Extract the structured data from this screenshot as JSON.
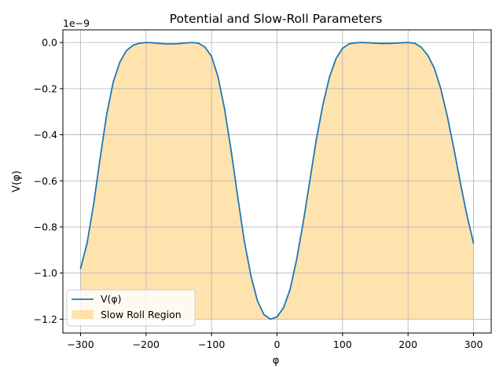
{
  "chart_data": {
    "type": "line",
    "title": "Potential and Slow-Roll Parameters",
    "xlabel": "φ",
    "ylabel": "V(φ)",
    "offset_text": "1e−9",
    "y_scale_factor": 1e-09,
    "xlim": [
      -327,
      327
    ],
    "ylim": [
      -1.26,
      0.055
    ],
    "x_ticks": [
      -300,
      -200,
      -100,
      0,
      100,
      200,
      300
    ],
    "x_tick_labels": [
      "−300",
      "−200",
      "−100",
      "0",
      "100",
      "200",
      "300"
    ],
    "y_ticks": [
      -1.2,
      -1.0,
      -0.8,
      -0.6,
      -0.4,
      -0.2,
      0.0
    ],
    "y_tick_labels": [
      "−1.2",
      "−1.0",
      "−0.8",
      "−0.6",
      "−0.4",
      "−0.2",
      "0.0"
    ],
    "grid": true,
    "legend_position": "lower-left",
    "series": [
      {
        "name": "V(φ)",
        "color": "#1f77b4",
        "x": [
          -300,
          -290,
          -280,
          -270,
          -260,
          -250,
          -240,
          -230,
          -220,
          -210,
          -200,
          -190,
          -180,
          -170,
          -160,
          -150,
          -140,
          -130,
          -120,
          -110,
          -100,
          -90,
          -80,
          -70,
          -60,
          -50,
          -40,
          -30,
          -20,
          -10,
          0,
          10,
          20,
          30,
          40,
          50,
          60,
          70,
          80,
          90,
          100,
          110,
          120,
          130,
          140,
          150,
          160,
          170,
          180,
          190,
          200,
          210,
          220,
          230,
          240,
          250,
          260,
          270,
          280,
          290,
          300
        ],
        "values": [
          -0.98,
          -0.87,
          -0.7,
          -0.5,
          -0.31,
          -0.17,
          -0.085,
          -0.035,
          -0.012,
          -0.003,
          0.0,
          -0.001,
          -0.004,
          -0.006,
          -0.006,
          -0.005,
          -0.002,
          0.0,
          -0.003,
          -0.02,
          -0.06,
          -0.15,
          -0.29,
          -0.47,
          -0.67,
          -0.86,
          -1.01,
          -1.12,
          -1.18,
          -1.2,
          -1.19,
          -1.15,
          -1.07,
          -0.94,
          -0.78,
          -0.6,
          -0.42,
          -0.27,
          -0.15,
          -0.07,
          -0.025,
          -0.006,
          -0.001,
          0.0,
          -0.001,
          -0.003,
          -0.004,
          -0.004,
          -0.003,
          -0.001,
          0.0,
          -0.003,
          -0.02,
          -0.055,
          -0.11,
          -0.2,
          -0.32,
          -0.46,
          -0.61,
          -0.75,
          -0.87
        ]
      }
    ],
    "fill": {
      "name": "Slow Roll Region",
      "color": "#ffc14d",
      "opacity": 0.45,
      "x_range": [
        -300,
        300
      ],
      "y_base": -1.2
    }
  }
}
